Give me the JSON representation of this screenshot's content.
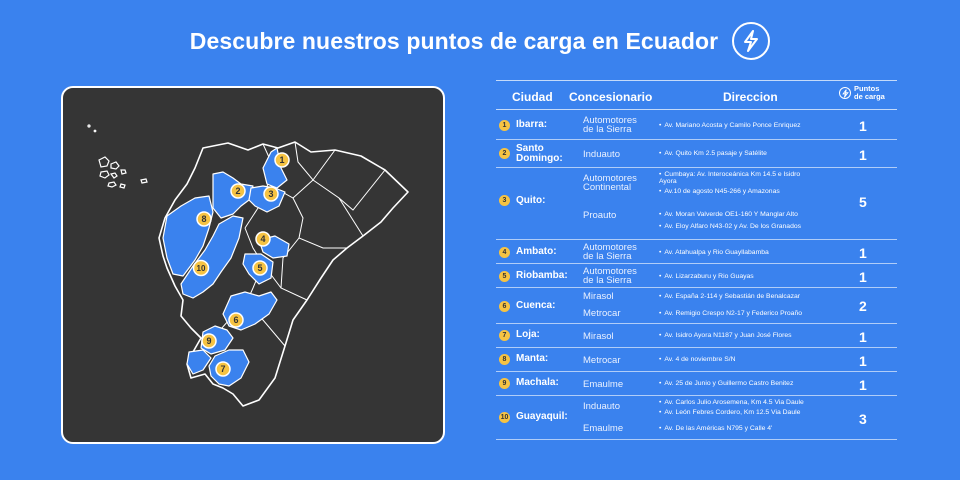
{
  "title": "Descubre nuestros puntos de carga en Ecuador",
  "icons": {
    "title_icon": "lightning-bolt-icon",
    "header_icon": "lightning-bolt-icon"
  },
  "colors": {
    "background": "#3a82ee",
    "map_panel": "#353535",
    "highlight_province": "#3a82ee",
    "pin": "#f6c343"
  },
  "map": {
    "pins": [
      {
        "id": "1"
      },
      {
        "id": "2"
      },
      {
        "id": "3"
      },
      {
        "id": "4"
      },
      {
        "id": "5"
      },
      {
        "id": "6"
      },
      {
        "id": "7"
      },
      {
        "id": "8"
      },
      {
        "id": "9"
      },
      {
        "id": "10"
      }
    ]
  },
  "table": {
    "headers": {
      "ciudad": "Ciudad",
      "concesionario": "Concesionario",
      "direccion": "Direccion",
      "puntos_line1": "Puntos",
      "puntos_line2": "de carga"
    },
    "rows": [
      {
        "num": "1",
        "city": "Ibarra:",
        "dealers": [
          {
            "name": "Automotores de la Sierra",
            "addresses": [
              "Av. Mariano Acosta y Camilo Ponce Enriquez"
            ]
          }
        ],
        "count": "1"
      },
      {
        "num": "2",
        "city": "Santo Domingo:",
        "dealers": [
          {
            "name": "Induauto",
            "addresses": [
              "Av. Quito Km 2.5 pasaje y Satélite"
            ]
          }
        ],
        "count": "1"
      },
      {
        "num": "3",
        "city": "Quito:",
        "dealers": [
          {
            "name": "Automotores Continental",
            "addresses": [
              "Cumbaya: Av. Interoceánica Km 14.5 e Isidro Ayora",
              "Av.10 de agosto N45-266 y Amazonas"
            ]
          },
          {
            "name": "Proauto",
            "addresses": [
              "Av. Moran Valverde OE1-160 Y Manglar Alto",
              "Av. Eloy Alfaro N43-02 y Av. De los Granados"
            ]
          }
        ],
        "count": "5"
      },
      {
        "num": "4",
        "city": "Ambato:",
        "dealers": [
          {
            "name": "Automotores de la Sierra",
            "addresses": [
              "Av. Atahualpa y Rio Guayllabamba"
            ]
          }
        ],
        "count": "1"
      },
      {
        "num": "5",
        "city": "Riobamba:",
        "dealers": [
          {
            "name": "Automotores de la Sierra",
            "addresses": [
              "Av. Lizarzaburu y Rio Guayas"
            ]
          }
        ],
        "count": "1"
      },
      {
        "num": "6",
        "city": "Cuenca:",
        "dealers": [
          {
            "name": "Mirasol",
            "addresses": [
              "Av. España 2-114 y Sebastián de Benalcazar"
            ]
          },
          {
            "name": "Metrocar",
            "addresses": [
              "Av. Remigio Crespo N2-17 y Federico Proaño"
            ]
          }
        ],
        "count": "2"
      },
      {
        "num": "7",
        "city": "Loja:",
        "dealers": [
          {
            "name": "Mirasol",
            "addresses": [
              "Av. Isidro Ayora N1187 y Juan José Flores"
            ]
          }
        ],
        "count": "1"
      },
      {
        "num": "8",
        "city": "Manta:",
        "dealers": [
          {
            "name": "Metrocar",
            "addresses": [
              "Av. 4 de noviembre S/N"
            ]
          }
        ],
        "count": "1"
      },
      {
        "num": "9",
        "city": "Machala:",
        "dealers": [
          {
            "name": "Emaulme",
            "addresses": [
              "Av. 25 de Junio y Guillermo Castro Benitez"
            ]
          }
        ],
        "count": "1"
      },
      {
        "num": "10",
        "city": "Guayaquil:",
        "dealers": [
          {
            "name": "Induauto",
            "addresses": [
              "Av. Carlos Julio Arosemena, Km 4.5 Via Daule",
              "Av. León Febres Cordero, Km 12.5 Via Daule"
            ]
          },
          {
            "name": "Emaulme",
            "addresses": [
              "Av. De las Américas N795 y Calle 4'"
            ]
          }
        ],
        "count": "3"
      }
    ]
  }
}
